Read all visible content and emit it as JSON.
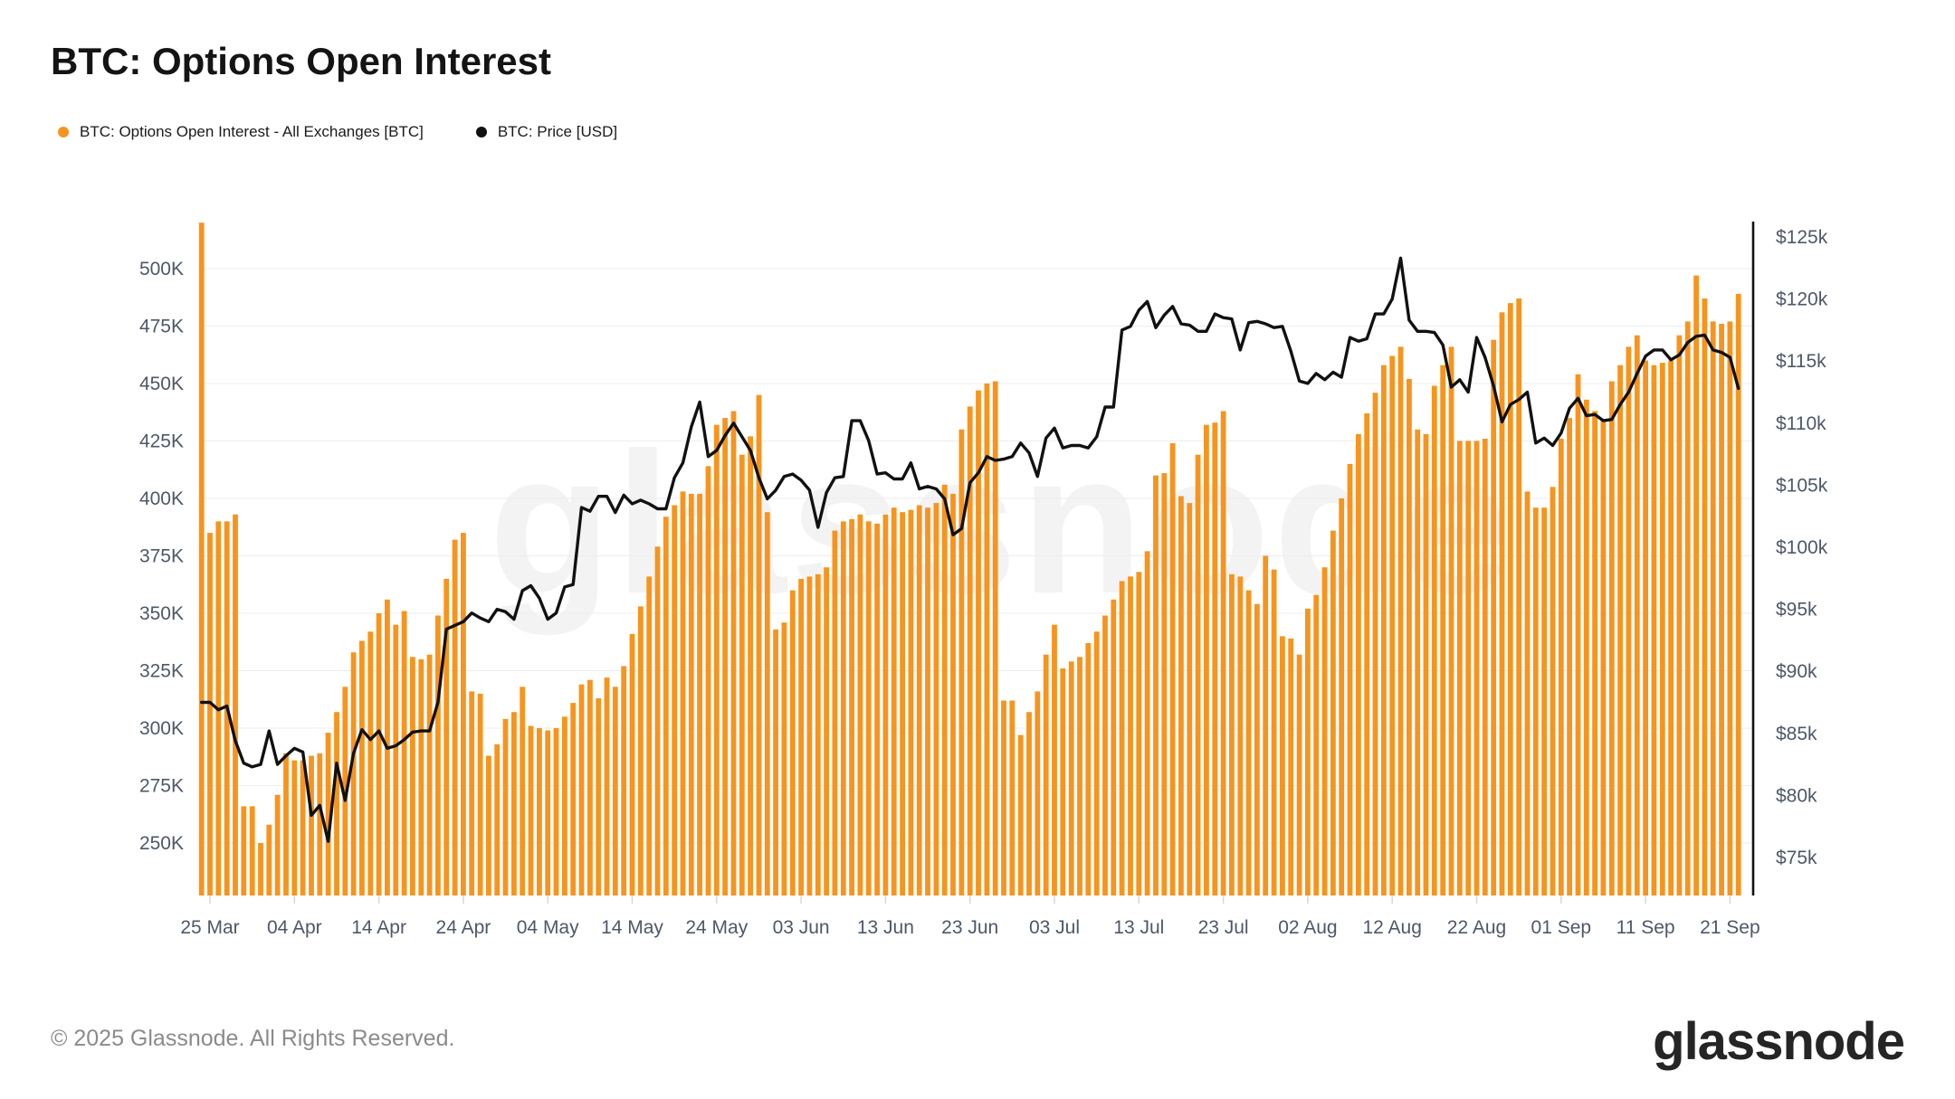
{
  "header": {
    "title": "BTC: Options Open Interest"
  },
  "legend": [
    {
      "label": "BTC: Options Open Interest - All Exchanges [BTC]",
      "color": "#F7941D",
      "marker": "dot"
    },
    {
      "label": "BTC: Price [USD]",
      "color": "#111111",
      "marker": "dot"
    }
  ],
  "watermark_text": "glassnode",
  "footer": {
    "copyright": "© 2025 Glassnode. All Rights Reserved.",
    "logo_text": "glassnode"
  },
  "chart_data": {
    "type": "bar+line",
    "title": "BTC: Options Open Interest",
    "frequency": "daily",
    "start_date": "2025-03-24",
    "end_date": "2025-09-22",
    "x_tick_labels": [
      "25 Mar",
      "04 Apr",
      "14 Apr",
      "24 Apr",
      "04 May",
      "14 May",
      "24 May",
      "03 Jun",
      "13 Jun",
      "23 Jun",
      "03 Jul",
      "13 Jul",
      "23 Jul",
      "02 Aug",
      "12 Aug",
      "22 Aug",
      "01 Sep",
      "11 Sep",
      "21 Sep"
    ],
    "x_tick_day_interval": 10,
    "y_left_axis": {
      "title": "Open Interest [BTC]",
      "tick_labels": [
        "500K",
        "475K",
        "450K",
        "425K",
        "400K",
        "375K",
        "350K",
        "325K",
        "300K",
        "275K",
        "250K"
      ],
      "tick_values_k": [
        500,
        475,
        450,
        425,
        400,
        375,
        350,
        325,
        300,
        275,
        250
      ],
      "visible_range_k": [
        227,
        520
      ],
      "grid": true
    },
    "y_right_axis": {
      "title": "Price [USD]",
      "tick_labels": [
        "$125k",
        "$120k",
        "$115k",
        "$110k",
        "$105k",
        "$100k",
        "$95k",
        "$90k",
        "$85k",
        "$80k",
        "$75k"
      ],
      "tick_values_k": [
        125,
        120,
        115,
        110,
        105,
        100,
        95,
        90,
        85,
        80,
        75
      ],
      "visible_range_k": [
        72,
        126.2
      ],
      "grid": false
    },
    "legend_position": "top-left",
    "series": [
      {
        "name": "BTC: Options Open Interest - All Exchanges [BTC]",
        "type": "bar",
        "axis": "left",
        "unit": "K BTC",
        "color": "#F7941D",
        "note": "first bar (2025-03-24) is clipped at the plot top",
        "values": [
          520,
          385,
          390,
          390,
          393,
          266,
          266,
          250,
          258,
          271,
          289,
          286,
          286,
          288,
          289,
          298,
          307,
          318,
          333,
          338,
          342,
          350,
          356,
          345,
          351,
          331,
          330,
          332,
          349,
          365,
          382,
          385,
          316,
          315,
          288,
          293,
          304,
          307,
          318,
          301,
          300,
          299,
          300,
          305,
          311,
          319,
          321,
          313,
          322,
          318,
          327,
          341,
          353,
          366,
          379,
          392,
          397,
          403,
          402,
          402,
          414,
          432,
          435,
          438,
          419,
          427,
          445,
          394,
          343,
          346,
          360,
          365,
          366,
          367,
          370,
          386,
          390,
          391,
          393,
          390,
          389,
          393,
          396,
          394,
          395,
          397,
          396,
          398,
          406,
          402,
          430,
          440,
          447,
          450,
          451,
          312,
          312,
          297,
          307,
          316,
          332,
          345,
          326,
          329,
          331,
          337,
          342,
          349,
          356,
          364,
          366,
          368,
          377,
          410,
          411,
          424,
          401,
          398,
          419,
          432,
          433,
          438,
          367,
          366,
          360,
          354,
          375,
          369,
          340,
          339,
          332,
          352,
          358,
          370,
          386,
          400,
          415,
          428,
          437,
          446,
          458,
          462,
          466,
          452,
          430,
          428,
          449,
          458,
          466,
          425,
          425,
          425,
          426,
          469,
          481,
          485,
          487,
          403,
          396,
          396,
          405,
          426,
          435,
          454,
          443,
          438,
          434,
          451,
          458,
          466,
          471,
          460,
          458,
          459,
          460,
          471,
          477,
          497,
          487,
          477,
          476,
          477,
          489
        ]
      },
      {
        "name": "BTC: Price [USD]",
        "type": "line",
        "axis": "right",
        "unit": "$k",
        "color": "#111111",
        "values": [
          87.5,
          87.5,
          86.9,
          87.2,
          84.4,
          82.6,
          82.3,
          82.5,
          85.2,
          82.5,
          83.2,
          83.8,
          83.5,
          78.4,
          79.2,
          76.3,
          82.6,
          79.6,
          83.4,
          85.3,
          84.5,
          85.2,
          83.8,
          84.0,
          84.5,
          85.1,
          85.2,
          85.2,
          87.5,
          93.4,
          93.7,
          94.0,
          94.7,
          94.3,
          94.0,
          95.0,
          94.8,
          94.2,
          96.5,
          96.9,
          95.9,
          94.2,
          94.7,
          96.8,
          97.0,
          103.2,
          102.9,
          104.1,
          104.1,
          102.8,
          104.2,
          103.5,
          103.8,
          103.5,
          103.1,
          103.1,
          105.6,
          106.8,
          109.7,
          111.7,
          107.3,
          107.8,
          109.0,
          110.0,
          108.9,
          107.8,
          105.6,
          103.9,
          104.6,
          105.7,
          105.9,
          105.4,
          104.6,
          101.6,
          104.4,
          105.6,
          105.7,
          110.2,
          110.2,
          108.6,
          105.9,
          106.0,
          105.5,
          105.5,
          106.8,
          104.7,
          104.9,
          104.7,
          103.9,
          101.0,
          101.5,
          105.2,
          106.0,
          107.3,
          107.0,
          107.1,
          107.3,
          108.4,
          107.6,
          105.7,
          108.8,
          109.6,
          108.0,
          108.2,
          108.2,
          108.0,
          108.9,
          111.3,
          111.3,
          117.5,
          117.8,
          119.1,
          119.8,
          117.7,
          118.7,
          119.4,
          118.0,
          117.9,
          117.4,
          117.4,
          118.8,
          118.5,
          118.4,
          115.9,
          118.1,
          118.2,
          118.0,
          117.7,
          117.8,
          115.8,
          113.4,
          113.2,
          114.0,
          113.5,
          114.1,
          113.7,
          116.9,
          116.6,
          116.8,
          118.8,
          118.8,
          120.0,
          123.3,
          118.3,
          117.4,
          117.4,
          117.3,
          116.3,
          112.9,
          113.5,
          112.5,
          116.9,
          115.3,
          113.0,
          110.1,
          111.5,
          111.9,
          112.5,
          108.4,
          108.8,
          108.2,
          109.2,
          111.2,
          112.0,
          110.6,
          110.7,
          110.2,
          110.3,
          111.5,
          112.5,
          114.0,
          115.4,
          115.9,
          115.9,
          115.1,
          115.5,
          116.5,
          117.0,
          117.1,
          115.9,
          115.7,
          115.3,
          112.8
        ]
      }
    ],
    "colors": {
      "bar": "#F7941D",
      "line": "#111111",
      "grid": "#ECEDF1",
      "axis_text": "#4D5868",
      "right_axis_line": "#111111"
    }
  }
}
